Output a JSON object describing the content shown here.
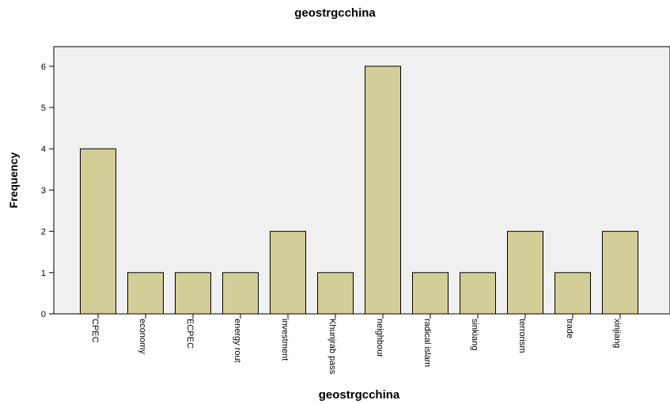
{
  "chart_data": {
    "type": "bar",
    "title": "geostrgcchina",
    "xlabel": "geostrgcchina",
    "ylabel": "Frequency",
    "categories": [
      "CPEC",
      "economy",
      "ECPEC",
      "energy rout",
      "investment",
      "Khunjrab pass",
      "neighbour",
      "radical islam",
      "sinkiang",
      "terrorism",
      "trade",
      "xinjiang"
    ],
    "values": [
      4,
      1,
      1,
      1,
      2,
      1,
      6,
      1,
      1,
      2,
      1,
      2
    ],
    "yticks": [
      "0",
      "1",
      "2",
      "3",
      "4",
      "5",
      "6"
    ],
    "ylim": [
      0,
      6.5
    ],
    "grid": false,
    "bar_color": "#d3ce97",
    "plot_bg": "#f0f0f0"
  }
}
